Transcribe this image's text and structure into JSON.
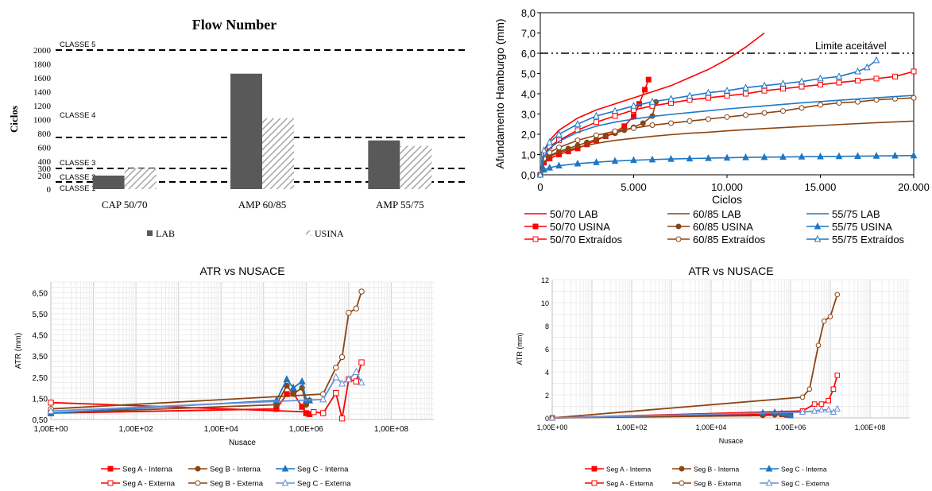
{
  "colors": {
    "lab_bar": "#595959",
    "usina_bar": "#a6a6a6",
    "red": "#ff0000",
    "brown": "#8b4513",
    "blue": "#1f77c4",
    "blue_light": "#6a8fd6"
  },
  "chart_data": [
    {
      "type": "bar",
      "title": "Flow Number",
      "ylabel": "Ciclos",
      "xlabel": "",
      "categories": [
        "CAP 50/70",
        "AMP 60/85",
        "AMP 55/75"
      ],
      "series": [
        {
          "name": "LAB",
          "values": [
            200,
            1660,
            700
          ]
        },
        {
          "name": "USINA",
          "values": [
            300,
            1020,
            620
          ]
        }
      ],
      "yticks": [
        0,
        200,
        300,
        400,
        600,
        800,
        1000,
        1200,
        1400,
        1600,
        1800,
        2000
      ],
      "yscale_note": "broken",
      "reference_lines": [
        {
          "label": "CLASSE 1",
          "value": 100
        },
        {
          "label": "CLASSE 2",
          "value": 300
        },
        {
          "label": "CLASSE 3",
          "value": 300
        },
        {
          "label": "CLASSE 4",
          "value": 750
        },
        {
          "label": "CLASSE 5",
          "value": 2000
        }
      ],
      "legend_position": "bottom"
    },
    {
      "type": "line",
      "title": "",
      "xlabel": "Ciclos",
      "ylabel": "Afundamento Hamburgo (mm)",
      "xlim": [
        0,
        20000
      ],
      "ylim": [
        0,
        8
      ],
      "xticks": [
        "0",
        "5.000",
        "10.000",
        "15.000",
        "20.000"
      ],
      "yticks": [
        "0,0",
        "1,0",
        "2,0",
        "3,0",
        "4,0",
        "5,0",
        "6,0",
        "7,0",
        "8,0"
      ],
      "limit_line": {
        "label": "Limite aceitável",
        "value": 6.0
      },
      "legend_position": "bottom",
      "series": [
        {
          "name": "50/70 LAB",
          "color": "#ff0000",
          "marker": "none",
          "x": [
            0,
            200,
            500,
            1000,
            2000,
            3000,
            4000,
            5000,
            6000,
            7000,
            8000,
            9000,
            10000,
            11000,
            12000
          ],
          "y": [
            0,
            1.2,
            1.7,
            2.2,
            2.8,
            3.2,
            3.5,
            3.8,
            4.1,
            4.4,
            4.8,
            5.2,
            5.7,
            6.3,
            7.0
          ]
        },
        {
          "name": "50/70 USINA",
          "color": "#ff0000",
          "marker": "square",
          "x": [
            0,
            200,
            500,
            1000,
            1500,
            2000,
            2500,
            3000,
            3500,
            4000,
            4500,
            5000,
            5300,
            5600,
            5800
          ],
          "y": [
            0,
            0.6,
            0.8,
            1.0,
            1.15,
            1.3,
            1.5,
            1.7,
            1.9,
            2.1,
            2.4,
            2.9,
            3.5,
            4.2,
            4.7
          ]
        },
        {
          "name": "50/70 Extraídos",
          "color": "#ff0000",
          "marker": "square-open",
          "x": [
            0,
            200,
            500,
            1000,
            2000,
            3000,
            4000,
            5000,
            6000,
            7000,
            8000,
            9000,
            10000,
            11000,
            12000,
            13000,
            14000,
            15000,
            16000,
            17000,
            18000,
            19000,
            20000
          ],
          "y": [
            0,
            1.0,
            1.4,
            1.7,
            2.2,
            2.6,
            2.9,
            3.2,
            3.4,
            3.55,
            3.7,
            3.8,
            3.9,
            4.0,
            4.15,
            4.25,
            4.35,
            4.45,
            4.55,
            4.65,
            4.75,
            4.85,
            5.1
          ]
        },
        {
          "name": "60/85 LAB",
          "color": "#8b4513",
          "marker": "none",
          "x": [
            0,
            200,
            500,
            1000,
            2000,
            3000,
            4000,
            5000,
            6000,
            7000,
            8000,
            9000,
            10000,
            12000,
            14000,
            16000,
            18000,
            20000
          ],
          "y": [
            0,
            0.6,
            0.9,
            1.1,
            1.35,
            1.55,
            1.7,
            1.8,
            1.9,
            1.98,
            2.05,
            2.1,
            2.17,
            2.28,
            2.38,
            2.48,
            2.57,
            2.65
          ]
        },
        {
          "name": "60/85 USINA",
          "color": "#8b4513",
          "marker": "circle",
          "x": [
            0,
            200,
            500,
            1000,
            1500,
            2000,
            2500,
            3000,
            3500,
            4000,
            4500,
            5000,
            5500,
            6000,
            6200
          ],
          "y": [
            0,
            0.7,
            0.95,
            1.15,
            1.3,
            1.45,
            1.6,
            1.75,
            1.9,
            2.05,
            2.2,
            2.35,
            2.55,
            2.9,
            3.6
          ]
        },
        {
          "name": "60/85 Extraídos",
          "color": "#8b4513",
          "marker": "circle-open",
          "x": [
            0,
            200,
            500,
            1000,
            2000,
            3000,
            4000,
            5000,
            6000,
            7000,
            8000,
            9000,
            10000,
            11000,
            12000,
            13000,
            14000,
            15000,
            16000,
            17000,
            18000,
            19000,
            20000
          ],
          "y": [
            0,
            0.8,
            1.1,
            1.35,
            1.7,
            1.95,
            2.15,
            2.3,
            2.45,
            2.55,
            2.65,
            2.75,
            2.85,
            2.95,
            3.05,
            3.15,
            3.3,
            3.45,
            3.55,
            3.6,
            3.7,
            3.75,
            3.8
          ]
        },
        {
          "name": "55/75 LAB",
          "color": "#1f77c4",
          "marker": "none",
          "x": [
            0,
            200,
            500,
            1000,
            2000,
            3000,
            4000,
            5000,
            6000,
            7000,
            8000,
            10000,
            12000,
            14000,
            16000,
            18000,
            20000
          ],
          "y": [
            0,
            0.9,
            1.3,
            1.65,
            2.1,
            2.4,
            2.6,
            2.75,
            2.88,
            2.98,
            3.07,
            3.25,
            3.4,
            3.55,
            3.68,
            3.8,
            3.92
          ]
        },
        {
          "name": "55/75 USINA",
          "color": "#1f77c4",
          "marker": "triangle",
          "x": [
            0,
            200,
            500,
            1000,
            2000,
            3000,
            4000,
            5000,
            6000,
            7000,
            8000,
            9000,
            10000,
            11000,
            12000,
            13000,
            14000,
            15000,
            16000,
            17000,
            18000,
            19000,
            20000
          ],
          "y": [
            0,
            0.25,
            0.35,
            0.45,
            0.55,
            0.62,
            0.68,
            0.72,
            0.75,
            0.78,
            0.8,
            0.82,
            0.84,
            0.86,
            0.87,
            0.88,
            0.89,
            0.9,
            0.91,
            0.92,
            0.93,
            0.94,
            0.95
          ]
        },
        {
          "name": "55/75 Extraídos",
          "color": "#1f77c4",
          "marker": "triangle-open",
          "x": [
            0,
            200,
            500,
            1000,
            2000,
            3000,
            4000,
            5000,
            6000,
            7000,
            8000,
            9000,
            10000,
            11000,
            12000,
            13000,
            14000,
            15000,
            16000,
            17000,
            17500,
            18000
          ],
          "y": [
            0,
            1.2,
            1.6,
            2.0,
            2.5,
            2.9,
            3.15,
            3.4,
            3.6,
            3.75,
            3.9,
            4.05,
            4.15,
            4.3,
            4.4,
            4.5,
            4.6,
            4.75,
            4.85,
            5.1,
            5.3,
            5.65
          ]
        }
      ]
    },
    {
      "type": "line",
      "title": "ATR vs NUSACE",
      "xlabel": "Nusace",
      "ylabel": "ATR (mm)",
      "xscale": "log",
      "xlim": [
        1,
        1000000000
      ],
      "ylim": [
        0.5,
        7.0
      ],
      "xticks": [
        "1,00E+00",
        "1,00E+02",
        "1,00E+04",
        "1,00E+06",
        "1,00E+08"
      ],
      "yticks": [
        "0,50",
        "1,50",
        "2,50",
        "3,50",
        "4,50",
        "5,50",
        "6,50"
      ],
      "legend_position": "bottom",
      "series": [
        {
          "name": "Seg A - Interna",
          "color": "#ff0000",
          "marker": "square",
          "x": [
            1,
            200000,
            350000,
            500000,
            800000,
            1000000,
            1200000
          ],
          "y": [
            0.8,
            1.0,
            1.7,
            1.75,
            1.1,
            0.8,
            0.75
          ]
        },
        {
          "name": "Seg B - Interna",
          "color": "#8b4513",
          "marker": "circle",
          "x": [
            1,
            200000,
            350000,
            500000,
            800000,
            1000000,
            1200000
          ],
          "y": [
            0.8,
            1.2,
            2.1,
            1.7,
            2.0,
            1.2,
            1.4
          ]
        },
        {
          "name": "Seg C - Interna",
          "color": "#1f77c4",
          "marker": "triangle",
          "x": [
            1,
            200000,
            350000,
            500000,
            800000,
            1000000,
            1200000
          ],
          "y": [
            0.8,
            1.4,
            2.4,
            2.0,
            2.3,
            1.4,
            1.4
          ]
        },
        {
          "name": "Seg A - Externa",
          "color": "#ff0000",
          "marker": "square-open",
          "x": [
            1,
            1500000,
            2500000,
            5000000,
            7000000,
            10000000,
            15000000,
            20000000
          ],
          "y": [
            1.3,
            0.85,
            0.8,
            1.75,
            0.55,
            2.4,
            2.3,
            3.2
          ]
        },
        {
          "name": "Seg B - Externa",
          "color": "#8b4513",
          "marker": "circle-open",
          "x": [
            1,
            2500000,
            5000000,
            7000000,
            10000000,
            15000000,
            20000000
          ],
          "y": [
            1.0,
            1.7,
            2.95,
            3.45,
            5.55,
            5.75,
            6.55
          ]
        },
        {
          "name": "Seg C - Externa",
          "color": "#6a8fd6",
          "marker": "triangle-open",
          "x": [
            1,
            2500000,
            5000000,
            7000000,
            10000000,
            15000000,
            20000000
          ],
          "y": [
            0.9,
            1.45,
            2.5,
            2.2,
            2.4,
            2.75,
            2.25
          ]
        }
      ]
    },
    {
      "type": "line",
      "title": "ATR vs NUSACE",
      "xlabel": "Nusace",
      "ylabel": "ATR (mm)",
      "xscale": "log",
      "xlim": [
        1,
        1000000000
      ],
      "ylim": [
        0,
        12
      ],
      "xticks": [
        "1,00E+00",
        "1,00E+02",
        "1,00E+04",
        "1,00E+06",
        "1,00E+08"
      ],
      "yticks": [
        "0",
        "2",
        "4",
        "6",
        "8",
        "10",
        "12"
      ],
      "legend_position": "bottom",
      "series": [
        {
          "name": "Seg A - Interna",
          "color": "#ff0000",
          "marker": "square",
          "x": [
            1,
            200000,
            400000,
            600000,
            800000,
            1000000
          ],
          "y": [
            0.0,
            0.3,
            0.35,
            0.3,
            0.25,
            0.2
          ]
        },
        {
          "name": "Seg B - Interna",
          "color": "#8b4513",
          "marker": "circle",
          "x": [
            1,
            200000,
            400000,
            600000,
            800000,
            1000000
          ],
          "y": [
            0.0,
            0.2,
            0.25,
            0.3,
            0.3,
            0.2
          ]
        },
        {
          "name": "Seg C - Interna",
          "color": "#1f77c4",
          "marker": "triangle",
          "x": [
            1,
            200000,
            400000,
            600000,
            800000,
            1000000
          ],
          "y": [
            0.0,
            0.45,
            0.5,
            0.4,
            0.35,
            0.2
          ]
        },
        {
          "name": "Seg A - Externa",
          "color": "#ff0000",
          "marker": "square-open",
          "x": [
            1,
            2000000,
            4000000,
            6000000,
            9000000,
            12000000,
            15000000
          ],
          "y": [
            0.0,
            0.6,
            1.2,
            1.2,
            1.5,
            2.5,
            3.7
          ]
        },
        {
          "name": "Seg B - Externa",
          "color": "#8b4513",
          "marker": "circle-open",
          "x": [
            1,
            2000000,
            3000000,
            5000000,
            7000000,
            10000000,
            15000000
          ],
          "y": [
            0.0,
            1.8,
            2.5,
            6.3,
            8.4,
            8.8,
            10.7
          ]
        },
        {
          "name": "Seg C - Externa",
          "color": "#6a8fd6",
          "marker": "triangle-open",
          "x": [
            1,
            2000000,
            4000000,
            6000000,
            9000000,
            12000000,
            15000000
          ],
          "y": [
            0.0,
            0.5,
            0.6,
            0.7,
            0.7,
            0.5,
            0.8
          ]
        }
      ]
    }
  ]
}
